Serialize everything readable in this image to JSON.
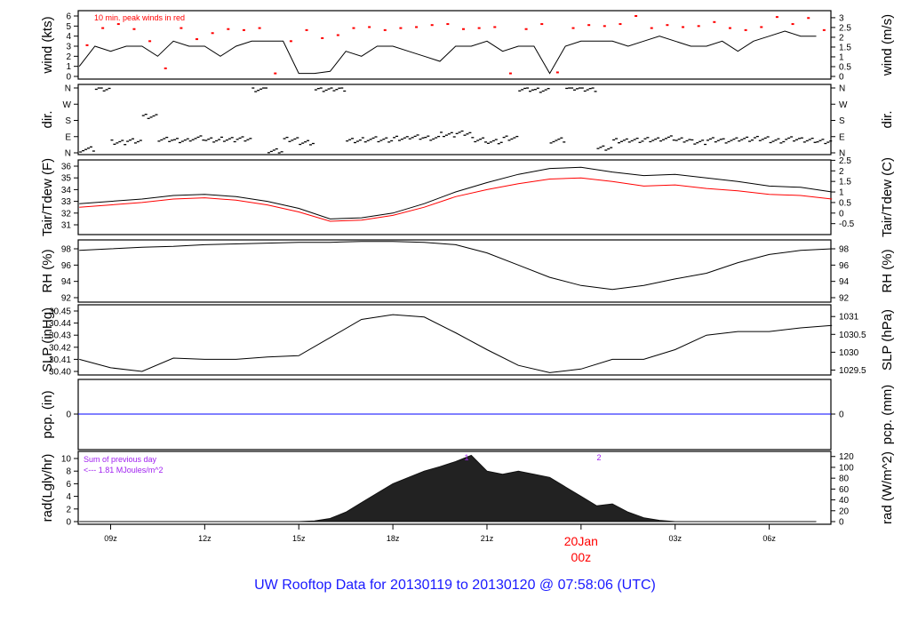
{
  "chart_data": {
    "type": "line",
    "title": "UW Rooftop Data for 20130119  to  20130120 @ 07:58:06  (UTC)",
    "x_range": [
      "2013-01-19 07:58",
      "2013-01-20 07:58"
    ],
    "x_ticks": [
      "09z",
      "12z",
      "15z",
      "18z",
      "21z",
      "00z",
      "03z",
      "06z"
    ],
    "date_label": "20Jan",
    "colors": {
      "line": "#000000",
      "dew": "#ff0000",
      "peak": "#ff0000",
      "pcp": "#0000ff",
      "annot": "#a020f0",
      "title": "#1a1aff"
    },
    "panels": {
      "wind": {
        "ylabel": "wind (kts)",
        "ylabel_right": "wind (m/s)",
        "ylim": [
          0,
          6
        ],
        "ticks": [
          0,
          1,
          2,
          3,
          4,
          5,
          6
        ],
        "ticks_right": [
          "0",
          "0.5",
          "1",
          "1.5",
          "2",
          "2.5",
          "3"
        ],
        "note": "10 min. peak winds in red",
        "interval_minutes": 30,
        "values": [
          1,
          3,
          2.5,
          3,
          3,
          2,
          3.5,
          3,
          3,
          2,
          3,
          3.5,
          3.5,
          3.5,
          0.3,
          0.3,
          0.5,
          2.5,
          2,
          3,
          3,
          2.5,
          2,
          1.5,
          3,
          3,
          3.5,
          2.5,
          3,
          3,
          0.3,
          3,
          3.5,
          3.5,
          3.5,
          3,
          3.5,
          4,
          3.5,
          3,
          3,
          3.5,
          2.5,
          3.5,
          4,
          4.5,
          4,
          4
        ],
        "peaks": [
          3.1,
          4.8,
          5.2,
          4.7,
          3.5,
          0.8,
          4.8,
          3.7,
          4.3,
          4.7,
          4.6,
          4.8,
          0.3,
          3.5,
          4.6,
          3.8,
          4.1,
          4.8,
          4.9,
          4.6,
          4.8,
          4.9,
          5.1,
          5.2,
          4.7,
          4.8,
          4.9,
          0.3,
          4.7,
          5.2,
          0.4,
          4.8,
          5.1,
          5.0,
          5.2,
          6.0,
          4.8,
          5.1,
          4.9,
          5.0,
          5.4,
          4.8,
          4.6,
          4.9,
          5.9,
          5.2,
          5.8,
          4.6
        ]
      },
      "dir": {
        "ylabel": "dir.",
        "ylabel_right": "dir.",
        "ticks": [
          "N",
          "E",
          "S",
          "W",
          "N"
        ],
        "interval_minutes": 30,
        "values": [
          20,
          355,
          60,
          70,
          200,
          75,
          70,
          80,
          70,
          75,
          80,
          355,
          10,
          75,
          60,
          350,
          355,
          70,
          75,
          70,
          80,
          90,
          85,
          100,
          110,
          75,
          60,
          80,
          355,
          350,
          70,
          360,
          355,
          30,
          65,
          70,
          75,
          80,
          70,
          60,
          75,
          70,
          75,
          80,
          70,
          75,
          70,
          65
        ]
      },
      "tair": {
        "ylabel": "Tair/Tdew (F)",
        "ylabel_right": "Tair/Tdew (C)",
        "ylim": [
          30.8,
          36.6
        ],
        "ticks": [
          31,
          32,
          33,
          34,
          35,
          36
        ],
        "ticks_right": [
          "-0.5",
          "0",
          "0.5",
          "1",
          "1.5",
          "2",
          "2.5"
        ],
        "interval_minutes": 60,
        "tair": [
          32.8,
          33.0,
          33.2,
          33.5,
          33.6,
          33.4,
          33.0,
          32.4,
          31.5,
          31.6,
          32.0,
          32.8,
          33.8,
          34.6,
          35.3,
          35.8,
          35.9,
          35.5,
          35.2,
          35.3,
          35.0,
          34.7,
          34.3,
          34.2,
          33.8
        ],
        "tdew": [
          32.5,
          32.7,
          32.9,
          33.2,
          33.3,
          33.1,
          32.7,
          32.1,
          31.3,
          31.4,
          31.8,
          32.5,
          33.4,
          34.0,
          34.5,
          34.9,
          35.0,
          34.7,
          34.3,
          34.4,
          34.1,
          33.9,
          33.6,
          33.5,
          33.2
        ]
      },
      "rh": {
        "ylabel": "RH (%)",
        "ylabel_right": "RH (%)",
        "ylim": [
          92,
          99.3
        ],
        "ticks": [
          92,
          94,
          96,
          98
        ],
        "interval_minutes": 60,
        "values": [
          97.8,
          98.0,
          98.2,
          98.3,
          98.5,
          98.6,
          98.7,
          98.8,
          98.8,
          98.9,
          98.9,
          98.8,
          98.5,
          97.5,
          96.0,
          94.5,
          93.5,
          93.0,
          93.5,
          94.3,
          95.0,
          96.3,
          97.3,
          97.8,
          98.0
        ]
      },
      "slp": {
        "ylabel": "SLP (inHg)",
        "ylabel_right": "SLP (hPa)",
        "ylim": [
          30.397,
          30.4495
        ],
        "ticks": [
          "30.40",
          "30.41",
          "30.42",
          "30.43",
          "30.44",
          "30.45"
        ],
        "ticks_right": [
          "1029.5",
          "1030",
          "1030.5",
          "1031"
        ],
        "interval_minutes": 60,
        "values": [
          30.41,
          30.403,
          30.4,
          30.411,
          30.41,
          30.41,
          30.412,
          30.413,
          30.428,
          30.443,
          30.447,
          30.445,
          30.432,
          30.418,
          30.405,
          30.399,
          30.402,
          30.41,
          30.41,
          30.418,
          30.43,
          30.433,
          30.433,
          30.436,
          30.438
        ]
      },
      "pcp": {
        "ylabel": "pcp. (in)",
        "ylabel_right": "pcp. (mm)",
        "ticks": [
          "0"
        ],
        "ticks_right": [
          "0"
        ],
        "values": [
          0
        ]
      },
      "rad": {
        "ylabel": "rad(Lgly/hr)",
        "ylabel_right": "rad (W/m^2)",
        "ylim": [
          0,
          10.6
        ],
        "ticks": [
          0,
          2,
          4,
          6,
          8,
          10
        ],
        "ticks_right": [
          0,
          20,
          40,
          60,
          80,
          100,
          120
        ],
        "note1": "Sum of previous day",
        "note2": "<--- 1.81 MJoules/m^2",
        "marks": [
          "1",
          "2"
        ],
        "interval_minutes": 30,
        "values": [
          0,
          0,
          0,
          0,
          0,
          0,
          0,
          0,
          0,
          0,
          0,
          0,
          0,
          0,
          0,
          0.1,
          0.5,
          1.5,
          3,
          4.5,
          6,
          7,
          8,
          8.7,
          9.5,
          10.5,
          8,
          7.5,
          8,
          7.5,
          7,
          5.5,
          4,
          2.5,
          2.8,
          1.5,
          0.6,
          0.2,
          0,
          0,
          0,
          0,
          0,
          0,
          0,
          0,
          0,
          0
        ]
      }
    }
  }
}
